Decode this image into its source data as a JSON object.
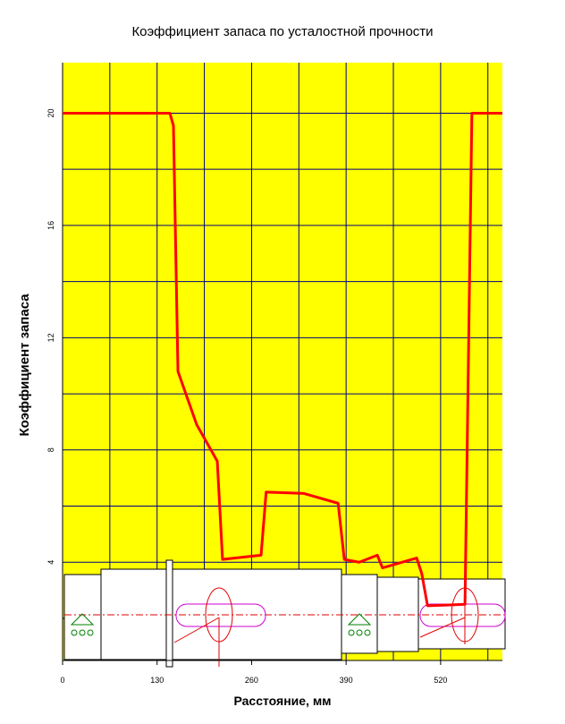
{
  "chart_data": {
    "type": "line",
    "title": "Коэффициент запаса по усталостной прочности",
    "xlabel": "Расстояние, мм",
    "ylabel": "Коэффициент запаса",
    "x": [
      0,
      147.6,
      152.5,
      158.7,
      184.5,
      212.8,
      220,
      273,
      280,
      332,
      379,
      387.5,
      408,
      433,
      440,
      487,
      494,
      502,
      553.5,
      563,
      605
    ],
    "series": [
      {
        "color": "#ff0000",
        "values": [
          20,
          20,
          19.55,
          10.8,
          8.9,
          7.6,
          4.1,
          4.25,
          6.5,
          6.45,
          6.1,
          4.1,
          4.0,
          4.25,
          3.8,
          4.15,
          3.6,
          2.45,
          2.5,
          20,
          20
        ]
      }
    ],
    "xlim": [
      0,
      605
    ],
    "xticks": [
      0,
      130,
      260,
      390,
      520
    ],
    "xminor": [
      65,
      195,
      325,
      455,
      585
    ],
    "ylim": [
      0.5,
      21.8
    ],
    "yticks": [
      4,
      8,
      12,
      16,
      20
    ],
    "yminor": [
      2,
      6,
      10,
      14,
      18
    ],
    "grid": true,
    "background": "#ffff00",
    "grid_color": "#000080"
  }
}
